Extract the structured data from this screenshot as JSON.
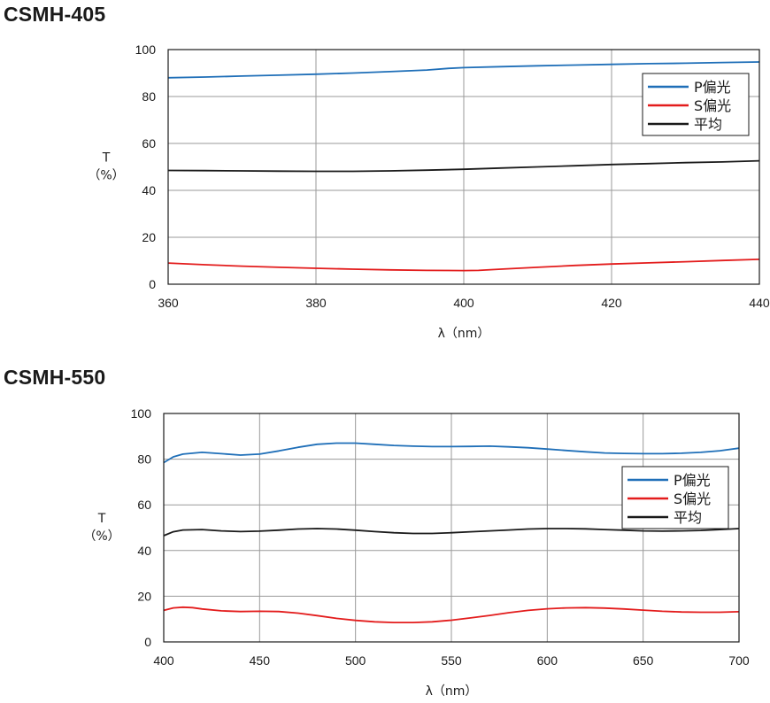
{
  "colors": {
    "p_series": "#1f6fb8",
    "s_series": "#e31c1c",
    "avg_series": "#1a1a1a",
    "grid": "#9a9a9a",
    "frame": "#1a1a1a"
  },
  "chart_data": [
    {
      "type": "line",
      "title": "CSMH-405",
      "xlabel": "λ（nm）",
      "ylabel_line1": "T",
      "ylabel_line2": "（%）",
      "xlim": [
        360,
        440
      ],
      "ylim": [
        0,
        100
      ],
      "xticks": [
        360,
        380,
        400,
        420,
        440
      ],
      "yticks": [
        0,
        20,
        40,
        60,
        80,
        100
      ],
      "grid": true,
      "legend_position": "top-right",
      "series": [
        {
          "name": "P偏光",
          "color_key": "p_series",
          "x": [
            360,
            365,
            370,
            375,
            380,
            385,
            390,
            395,
            398,
            400,
            405,
            410,
            415,
            420,
            425,
            430,
            435,
            440
          ],
          "y": [
            88,
            88.3,
            88.7,
            89.1,
            89.5,
            90.0,
            90.6,
            91.3,
            92.0,
            92.3,
            92.7,
            93.1,
            93.4,
            93.7,
            94.0,
            94.2,
            94.5,
            94.7
          ]
        },
        {
          "name": "S偏光",
          "color_key": "s_series",
          "x": [
            360,
            365,
            370,
            375,
            380,
            385,
            390,
            395,
            400,
            402,
            405,
            410,
            415,
            420,
            425,
            430,
            435,
            440
          ],
          "y": [
            9,
            8.3,
            7.7,
            7.2,
            6.8,
            6.4,
            6.1,
            5.9,
            5.8,
            5.9,
            6.4,
            7.2,
            8.0,
            8.6,
            9.1,
            9.6,
            10.1,
            10.6
          ]
        },
        {
          "name": "平均",
          "color_key": "avg_series",
          "x": [
            360,
            365,
            370,
            375,
            380,
            385,
            390,
            395,
            400,
            405,
            410,
            415,
            420,
            425,
            430,
            435,
            440
          ],
          "y": [
            48.5,
            48.4,
            48.3,
            48.2,
            48.1,
            48.1,
            48.3,
            48.6,
            49.0,
            49.5,
            50.0,
            50.5,
            51.0,
            51.4,
            51.8,
            52.1,
            52.6
          ]
        }
      ]
    },
    {
      "type": "line",
      "title": "CSMH-550",
      "xlabel": "λ（nm）",
      "ylabel_line1": "T",
      "ylabel_line2": "（%）",
      "xlim": [
        400,
        700
      ],
      "ylim": [
        0,
        100
      ],
      "xticks": [
        400,
        450,
        500,
        550,
        600,
        650,
        700
      ],
      "yticks": [
        0,
        20,
        40,
        60,
        80,
        100
      ],
      "grid": true,
      "legend_position": "right",
      "series": [
        {
          "name": "P偏光",
          "color_key": "p_series",
          "x": [
            400,
            405,
            410,
            420,
            430,
            440,
            450,
            460,
            470,
            480,
            490,
            500,
            510,
            520,
            530,
            540,
            550,
            560,
            570,
            580,
            590,
            600,
            610,
            620,
            630,
            640,
            650,
            660,
            670,
            680,
            690,
            700
          ],
          "y": [
            78.5,
            81,
            82.2,
            83,
            82.4,
            81.8,
            82.2,
            83.6,
            85.2,
            86.5,
            87,
            87,
            86.5,
            86.0,
            85.7,
            85.5,
            85.5,
            85.6,
            85.7,
            85.4,
            85.0,
            84.4,
            83.8,
            83.2,
            82.7,
            82.5,
            82.4,
            82.4,
            82.6,
            83.0,
            83.7,
            84.8
          ]
        },
        {
          "name": "S偏光",
          "color_key": "s_series",
          "x": [
            400,
            405,
            410,
            415,
            420,
            430,
            440,
            450,
            460,
            470,
            480,
            490,
            500,
            510,
            520,
            530,
            540,
            550,
            560,
            570,
            580,
            590,
            600,
            610,
            620,
            630,
            640,
            650,
            660,
            670,
            680,
            690,
            700
          ],
          "y": [
            13.8,
            14.9,
            15.2,
            15.0,
            14.4,
            13.6,
            13.3,
            13.4,
            13.3,
            12.6,
            11.5,
            10.3,
            9.4,
            8.8,
            8.5,
            8.5,
            8.8,
            9.5,
            10.5,
            11.6,
            12.8,
            13.8,
            14.5,
            14.9,
            15.0,
            14.8,
            14.4,
            13.9,
            13.4,
            13.1,
            13.0,
            13.0,
            13.2
          ]
        },
        {
          "name": "平均",
          "color_key": "avg_series",
          "x": [
            400,
            405,
            410,
            420,
            430,
            440,
            450,
            460,
            470,
            480,
            490,
            500,
            510,
            520,
            530,
            540,
            550,
            560,
            570,
            580,
            590,
            600,
            610,
            620,
            630,
            640,
            650,
            660,
            670,
            680,
            690,
            700
          ],
          "y": [
            46.5,
            48.2,
            49.0,
            49.2,
            48.6,
            48.3,
            48.5,
            48.9,
            49.4,
            49.6,
            49.4,
            48.9,
            48.3,
            47.8,
            47.5,
            47.5,
            47.8,
            48.2,
            48.6,
            49.0,
            49.4,
            49.6,
            49.6,
            49.5,
            49.2,
            48.9,
            48.6,
            48.5,
            48.6,
            48.8,
            49.2,
            49.6
          ]
        }
      ]
    }
  ]
}
